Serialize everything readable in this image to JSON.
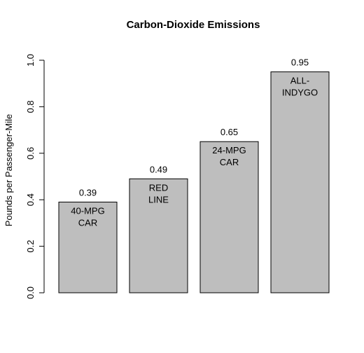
{
  "chart_data": {
    "type": "bar",
    "title": "Carbon-Dioxide Emissions",
    "xlabel": "",
    "ylabel": "Pounds per Passenger-Mile",
    "categories": [
      [
        "40-MPG",
        "CAR"
      ],
      [
        "RED",
        "LINE"
      ],
      [
        "24-MPG",
        "CAR"
      ],
      [
        "ALL-",
        "INDYGO"
      ]
    ],
    "values": [
      0.39,
      0.49,
      0.65,
      0.95
    ],
    "data_labels": [
      "0.39",
      "0.49",
      "0.65",
      "0.95"
    ],
    "yticks": [
      0.0,
      0.2,
      0.4,
      0.6,
      0.8,
      1.0
    ],
    "ytick_labels": [
      "0.0",
      "0.2",
      "0.4",
      "0.6",
      "0.8",
      "1.0"
    ],
    "ylim": [
      0,
      1.0
    ],
    "grid": false,
    "bar_color": "#bebebe",
    "bar_edge_color": "#000000"
  }
}
